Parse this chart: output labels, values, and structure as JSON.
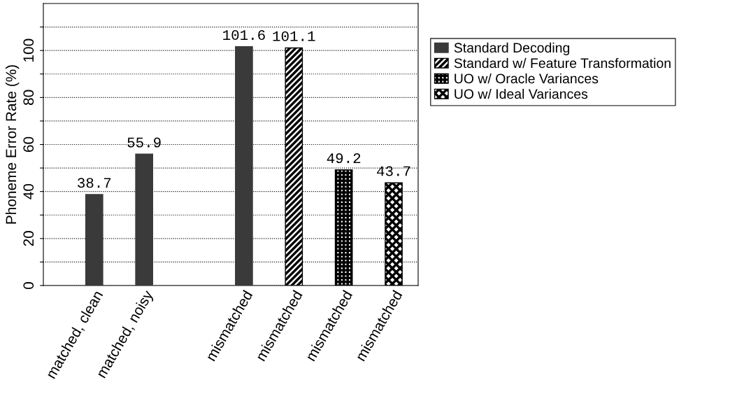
{
  "chart_data": {
    "type": "bar",
    "ylabel": "Phoneme Error Rate (%)",
    "categories": [
      "matched, clean",
      "matched, noisy",
      null,
      "mismatched",
      "mismatched",
      "mismatched",
      "mismatched"
    ],
    "series": [
      {
        "name": "Standard Decoding",
        "color": "#3a3a3a",
        "values": [
          38.7,
          55.9,
          null,
          101.6,
          null,
          null,
          null
        ]
      },
      {
        "name": "Standard w/ Feature Transformation",
        "color": "#000000",
        "values": [
          null,
          null,
          null,
          null,
          101.1,
          null,
          null
        ]
      },
      {
        "name": "UO w/ Oracle Variances",
        "color": "#000000",
        "values": [
          null,
          null,
          null,
          null,
          null,
          49.2,
          null
        ]
      },
      {
        "name": "UO w/ Ideal Variances",
        "color": "#000000",
        "values": [
          null,
          null,
          null,
          null,
          null,
          null,
          43.7
        ]
      }
    ],
    "data_labels": true,
    "ylim": [
      0,
      120
    ],
    "yticks": [
      0,
      {
        "value": 10,
        "label": null
      },
      20,
      {
        "value": 30,
        "label": null
      },
      40,
      {
        "value": 50,
        "label": null
      },
      60,
      {
        "value": 70,
        "label": null
      },
      80,
      {
        "value": 90,
        "label": null
      },
      100,
      {
        "value": 110,
        "label": null
      }
    ],
    "grid": "y",
    "legend": "top right"
  }
}
